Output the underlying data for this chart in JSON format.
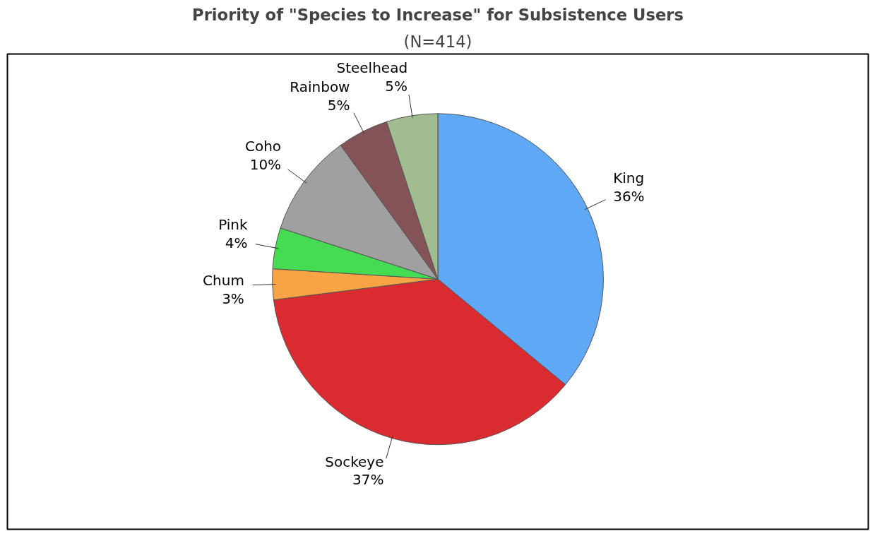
{
  "chart_data": {
    "type": "pie",
    "title": "Priority of \"Species to Increase\" for Subsistence Users",
    "subtitle": "(N=414)",
    "categories": [
      "King",
      "Sockeye",
      "Chum",
      "Pink",
      "Coho",
      "Rainbow",
      "Steelhead"
    ],
    "values": [
      36,
      37,
      3,
      4,
      10,
      5,
      5
    ],
    "value_labels": [
      "36%",
      "37%",
      "3%",
      "4%",
      "10%",
      "5%",
      "5%"
    ],
    "colors": [
      "#5fa8f5",
      "#d92b30",
      "#f8a444",
      "#45db52",
      "#a0a0a0",
      "#845357",
      "#a0bc90"
    ]
  }
}
